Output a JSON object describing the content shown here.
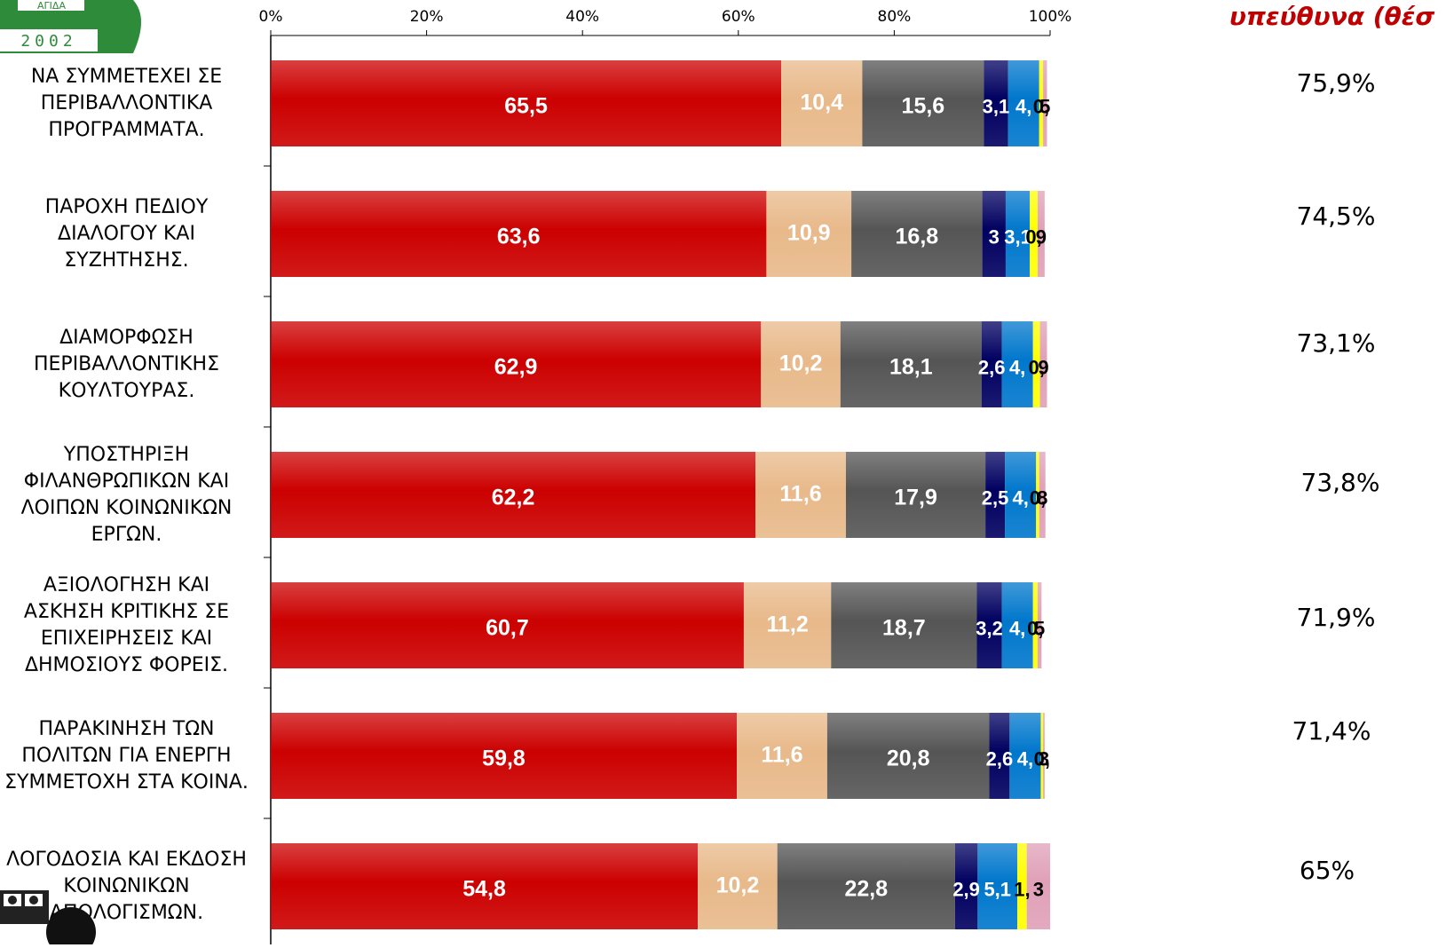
{
  "side_title": "υπεύθυνα (θέσ",
  "logo": {
    "text_top": "ΑΓΙΔΑ",
    "year": "2002"
  },
  "chart_data": {
    "type": "bar",
    "orientation": "horizontal",
    "stacked": true,
    "x_ticks": [
      "0%",
      "20%",
      "40%",
      "60%",
      "80%",
      "100%"
    ],
    "xlim": [
      0,
      100
    ],
    "categories": [
      "ΝΑ ΣΥΜΜΕΤΕΧΕΙ ΣΕ ΠΕΡΙΒΑΛΛΟΝΤΙΚΑ ΠΡΟΓΡΑΜΜΑΤΑ.",
      "ΠΑΡΟΧΗ ΠΕΔΙΟΥ ΔΙΑΛΟΓΟΥ ΚΑΙ ΣΥΖΗΤΗΣΗΣ.",
      "ΔΙΑΜΟΡΦΩΣΗ ΠΕΡΙΒΑΛΛΟΝΤΙΚΗΣ ΚΟΥΛΤΟΥΡΑΣ.",
      "ΥΠΟΣΤΗΡΙΞΗ ΦΙΛΑΝΘΡΩΠΙΚΩΝ ΚΑΙ ΛΟΙΠΩΝ ΚΟΙΝΩΝΙΚΩΝ ΕΡΓΩΝ.",
      "ΑΞΙΟΛΟΓΗΣΗ ΚΑΙ ΑΣΚΗΣΗ ΚΡΙΤΙΚΗΣ ΣΕ ΕΠΙΧΕΙΡΗΣΕΙΣ ΚΑΙ ΔΗΜΟΣΙΟΥΣ ΦΟΡΕΙΣ.",
      "ΠΑΡΑΚΙΝΗΣΗ ΤΩΝ ΠΟΛΙΤΩΝ ΓΙΑ ΕΝΕΡΓΗ ΣΥΜΜΕΤΟΧΗ ΣΤΑ ΚΟΙΝΑ.",
      "ΛΟΓΟΔΟΣΙΑ ΚΑΙ ΕΚΔΟΣΗ ΚΟΙΝΩΝΙΚΩΝ ΑΠΟΛΟΓΙΣΜΩΝ."
    ],
    "category_lines": [
      [
        "ΝΑ ΣΥΜΜΕΤΕΧΕΙ ΣΕ",
        "ΠΕΡΙΒΑΛΛΟΝΤΙΚΑ",
        "ΠΡΟΓΡΑΜΜΑΤΑ."
      ],
      [
        "ΠΑΡΟΧΗ ΠΕΔΙΟΥ",
        "ΔΙΑΛΟΓΟΥ ΚΑΙ",
        "ΣΥΖΗΤΗΣΗΣ."
      ],
      [
        "ΔΙΑΜΟΡΦΩΣΗ",
        "ΠΕΡΙΒΑΛΛΟΝΤΙΚΗΣ",
        "ΚΟΥΛΤΟΥΡΑΣ."
      ],
      [
        "ΥΠΟΣΤΗΡΙΞΗ",
        "ΦΙΛΑΝΘΡΩΠΙΚΩΝ ΚΑΙ",
        "ΛΟΙΠΩΝ ΚΟΙΝΩΝΙΚΩΝ",
        "ΕΡΓΩΝ."
      ],
      [
        "ΑΞΙΟΛΟΓΗΣΗ ΚΑΙ",
        "ΑΣΚΗΣΗ ΚΡΙΤΙΚΗΣ ΣΕ",
        "ΕΠΙΧΕΙΡΗΣΕΙΣ ΚΑΙ",
        "ΔΗΜΟΣΙΟΥΣ ΦΟΡΕΙΣ."
      ],
      [
        "ΠΑΡΑΚΙΝΗΣΗ ΤΩΝ",
        "ΠΟΛΙΤΩΝ ΓΙΑ ΕΝΕΡΓΗ",
        "ΣΥΜΜΕΤΟΧΗ ΣΤΑ ΚΟΙΝΑ."
      ],
      [
        "ΛΟΓΟΔΟΣΙΑ ΚΑΙ ΕΚΔΟΣΗ",
        "ΚΟΙΝΩΝΙΚΩΝ",
        "ΑΠΟΛΟΓΙΣΜΩΝ."
      ]
    ],
    "series": [
      {
        "color": "#cc0000",
        "label_color": "#ffffff",
        "values": [
          65.5,
          63.6,
          62.9,
          62.2,
          60.7,
          59.8,
          54.8
        ]
      },
      {
        "color": "#e8b98a",
        "label_color": "#ffffff",
        "values": [
          10.4,
          10.9,
          10.2,
          11.6,
          11.2,
          11.6,
          10.2
        ]
      },
      {
        "color": "#555555",
        "label_color": "#ffffff",
        "values": [
          15.6,
          16.8,
          18.1,
          17.9,
          18.7,
          20.8,
          22.8
        ]
      },
      {
        "color": "#000060",
        "label_color": "#ffffff",
        "values": [
          3.1,
          3,
          2.6,
          2.5,
          3.2,
          2.6,
          2.9
        ]
      },
      {
        "color": "#0077cc",
        "label_color": "#ffffff",
        "values": [
          4,
          3.1,
          4,
          4,
          4,
          4,
          5.1
        ]
      },
      {
        "color": "#ffff00",
        "label_color": "#000000",
        "values": [
          0.5,
          1,
          0.9,
          0.4,
          0.6,
          0.3,
          1.2
        ]
      },
      {
        "color": "#e0a0b8",
        "label_color": "#000000",
        "values": [
          0.5,
          0.9,
          0.9,
          0.8,
          0.5,
          0.2,
          3
        ]
      }
    ],
    "data_labels": [
      [
        "65,5",
        "10,4",
        "15,6",
        "3,1",
        "4,",
        "0,",
        "5"
      ],
      [
        "63,6",
        "10,9",
        "16,8",
        "3",
        "3,1",
        "0,",
        "9"
      ],
      [
        "62,9",
        "10,2",
        "18,1",
        "2,6",
        "4,",
        "0,",
        "9"
      ],
      [
        "62,2",
        "11,6",
        "17,9",
        "2,5",
        "4,",
        "0,",
        "8"
      ],
      [
        "60,7",
        "11,2",
        "18,7",
        "3,2",
        "4,",
        "0,",
        "5"
      ],
      [
        "59,8",
        "11,6",
        "20,8",
        "2,6",
        "4,",
        "0,",
        "3"
      ],
      [
        "54,8",
        "10,2",
        "22,8",
        "2,9",
        "5,1",
        "1,",
        "3"
      ]
    ],
    "side_values": [
      "75,9%",
      "74,5%",
      "73,1%",
      "73,8%",
      "71,9%",
      "71,4%",
      "65%"
    ]
  }
}
